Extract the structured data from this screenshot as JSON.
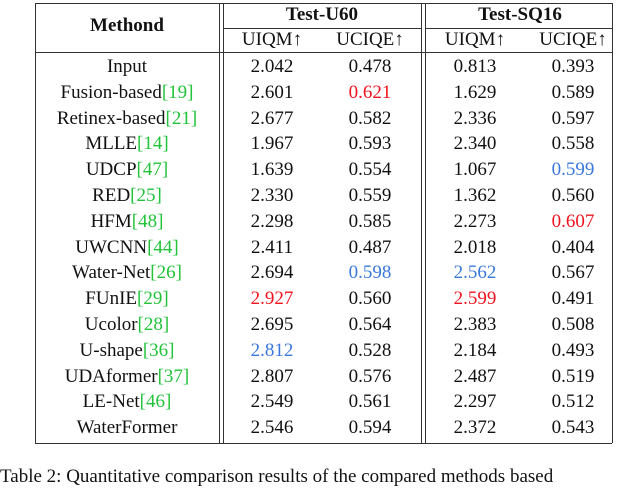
{
  "table": {
    "header": {
      "method": "Methond",
      "groups": [
        "Test-U60",
        "Test-SQ16"
      ],
      "metrics": [
        "UIQM↑",
        "UCIQE↑",
        "UIQM↑",
        "UCIQE↑"
      ]
    },
    "rank_colors": {
      "1": "#f0141e",
      "2": "#3a78dc"
    },
    "cite_color": "#22c33a",
    "rows": [
      {
        "method": "Input",
        "cite": null,
        "values": [
          "2.042",
          "0.478",
          "0.813",
          "0.393"
        ],
        "rank": [
          null,
          null,
          null,
          null
        ]
      },
      {
        "method": "Fusion-based",
        "cite": "[19]",
        "values": [
          "2.601",
          "0.621",
          "1.629",
          "0.589"
        ],
        "rank": [
          null,
          1,
          null,
          null
        ]
      },
      {
        "method": "Retinex-based",
        "cite": "[21]",
        "values": [
          "2.677",
          "0.582",
          "2.336",
          "0.597"
        ],
        "rank": [
          null,
          null,
          null,
          null
        ]
      },
      {
        "method": "MLLE",
        "cite": "[14]",
        "values": [
          "1.967",
          "0.593",
          "2.340",
          "0.558"
        ],
        "rank": [
          null,
          null,
          null,
          null
        ]
      },
      {
        "method": "UDCP",
        "cite": "[47]",
        "values": [
          "1.639",
          "0.554",
          "1.067",
          "0.599"
        ],
        "rank": [
          null,
          null,
          null,
          2
        ]
      },
      {
        "method": "RED",
        "cite": "[25]",
        "values": [
          "2.330",
          "0.559",
          "1.362",
          "0.560"
        ],
        "rank": [
          null,
          null,
          null,
          null
        ]
      },
      {
        "method": "HFM",
        "cite": "[48]",
        "values": [
          "2.298",
          "0.585",
          "2.273",
          "0.607"
        ],
        "rank": [
          null,
          null,
          null,
          1
        ]
      },
      {
        "method": "UWCNN",
        "cite": "[44]",
        "values": [
          "2.411",
          "0.487",
          "2.018",
          "0.404"
        ],
        "rank": [
          null,
          null,
          null,
          null
        ]
      },
      {
        "method": "Water-Net",
        "cite": "[26]",
        "values": [
          "2.694",
          "0.598",
          "2.562",
          "0.567"
        ],
        "rank": [
          null,
          2,
          2,
          null
        ]
      },
      {
        "method": "FUnIE",
        "cite": "[29]",
        "values": [
          "2.927",
          "0.560",
          "2.599",
          "0.491"
        ],
        "rank": [
          1,
          null,
          1,
          null
        ]
      },
      {
        "method": "Ucolor",
        "cite": "[28]",
        "values": [
          "2.695",
          "0.564",
          "2.383",
          "0.508"
        ],
        "rank": [
          null,
          null,
          null,
          null
        ]
      },
      {
        "method": "U-shape",
        "cite": "[36]",
        "values": [
          "2.812",
          "0.528",
          "2.184",
          "0.493"
        ],
        "rank": [
          2,
          null,
          null,
          null
        ]
      },
      {
        "method": "UDAformer",
        "cite": "[37]",
        "values": [
          "2.807",
          "0.576",
          "2.487",
          "0.519"
        ],
        "rank": [
          null,
          null,
          null,
          null
        ]
      },
      {
        "method": "LE-Net",
        "cite": "[46]",
        "values": [
          "2.549",
          "0.561",
          "2.297",
          "0.512"
        ],
        "rank": [
          null,
          null,
          null,
          null
        ]
      },
      {
        "method": "WaterFormer",
        "cite": null,
        "values": [
          "2.546",
          "0.594",
          "2.372",
          "0.543"
        ],
        "rank": [
          null,
          null,
          null,
          null
        ]
      }
    ],
    "caption": "Table 2: Quantitative comparison results of the compared methods based"
  }
}
